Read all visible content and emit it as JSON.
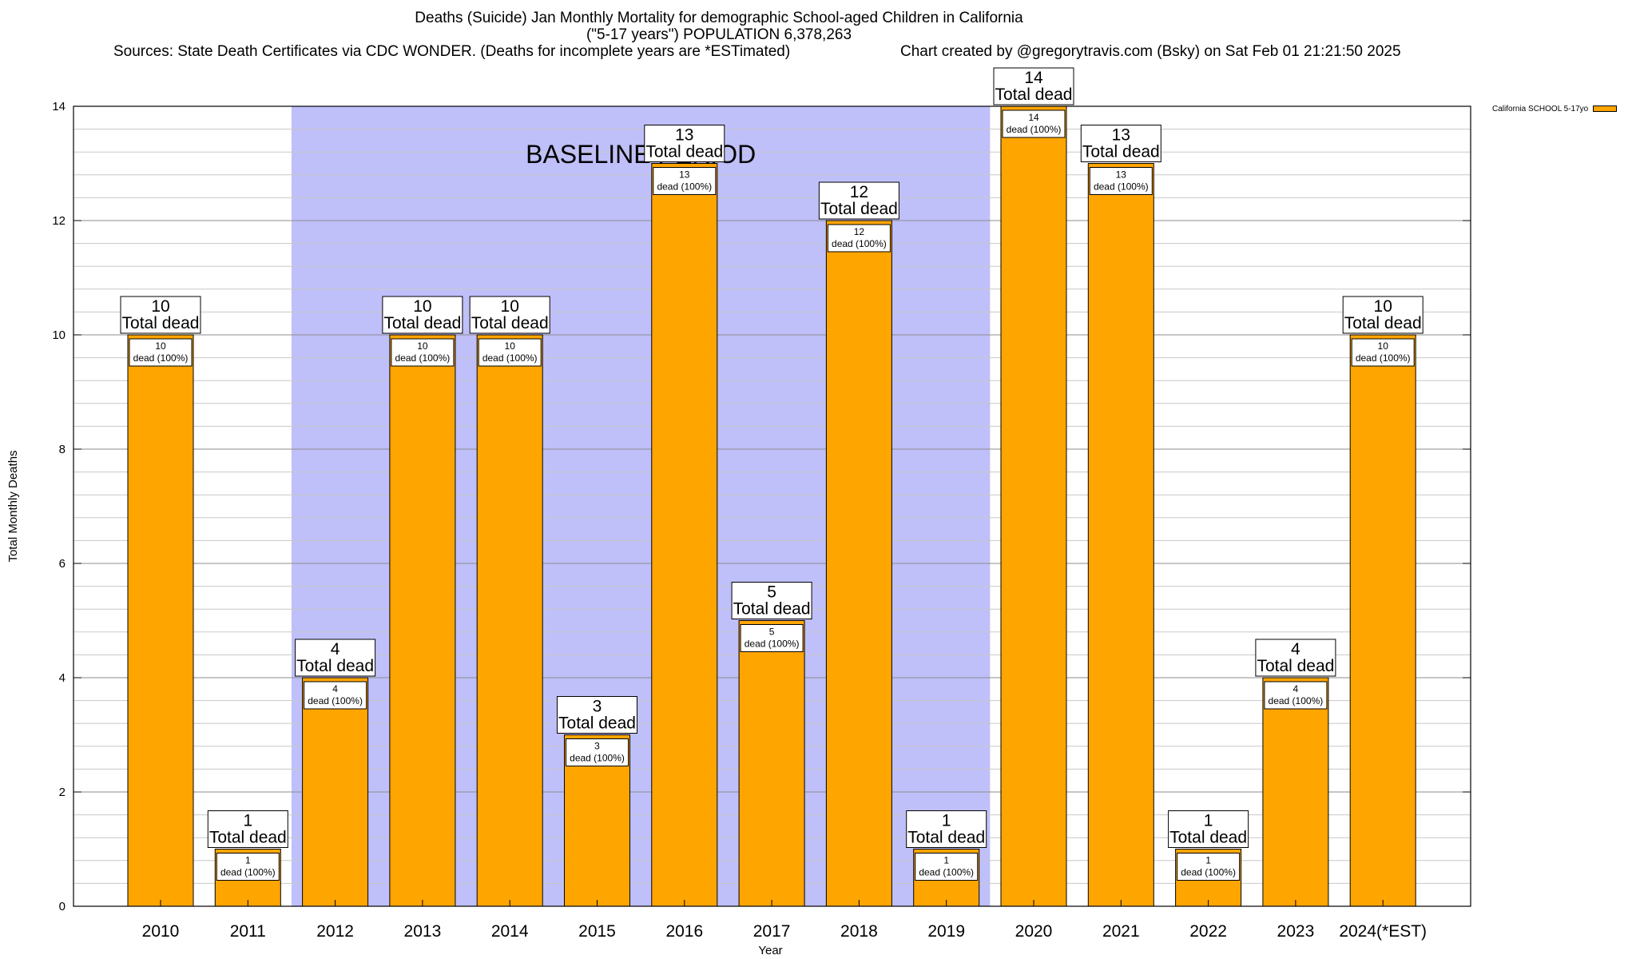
{
  "title": {
    "line1": "Deaths (Suicide) Jan Monthly Mortality for demographic School-aged Children in California",
    "line2": "(\"5-17 years\") POPULATION 6,378,263",
    "sources": "Sources: State Death Certificates via CDC WONDER. (Deaths for incomplete years are *ESTimated)",
    "credit": "Chart created by @gregorytravis.com (Bsky) on Sat Feb 01 21:21:50 2025"
  },
  "legend": {
    "label": "California SCHOOL 5-17yo"
  },
  "colors": {
    "bar": "#ffa500",
    "baseline_band": "#bfbffa",
    "grid": "#c8c8c8"
  },
  "baseline_label": "BASELINE PERIOD",
  "chart_data": {
    "type": "bar",
    "title": "Deaths (Suicide) Jan Monthly Mortality for demographic School-aged Children in California",
    "xlabel": "Year",
    "ylabel": "Total Monthly Deaths",
    "ylim": [
      0,
      14
    ],
    "yticks": [
      0,
      2,
      4,
      6,
      8,
      10,
      12,
      14
    ],
    "grid": true,
    "legend_position": "top-right",
    "categories": [
      "2010",
      "2011",
      "2012",
      "2013",
      "2014",
      "2015",
      "2016",
      "2017",
      "2018",
      "2019",
      "2020",
      "2021",
      "2022",
      "2023",
      "2024(*EST)"
    ],
    "series": [
      {
        "name": "California SCHOOL 5-17yo",
        "values": [
          10,
          1,
          4,
          10,
          10,
          3,
          13,
          5,
          12,
          1,
          14,
          13,
          1,
          4,
          10
        ]
      }
    ],
    "top_label_suffix": "Total dead",
    "inner_label_suffix": "dead (100%)",
    "baseline_period": {
      "start": "2012",
      "end": "2019",
      "label": "BASELINE PERIOD"
    }
  }
}
